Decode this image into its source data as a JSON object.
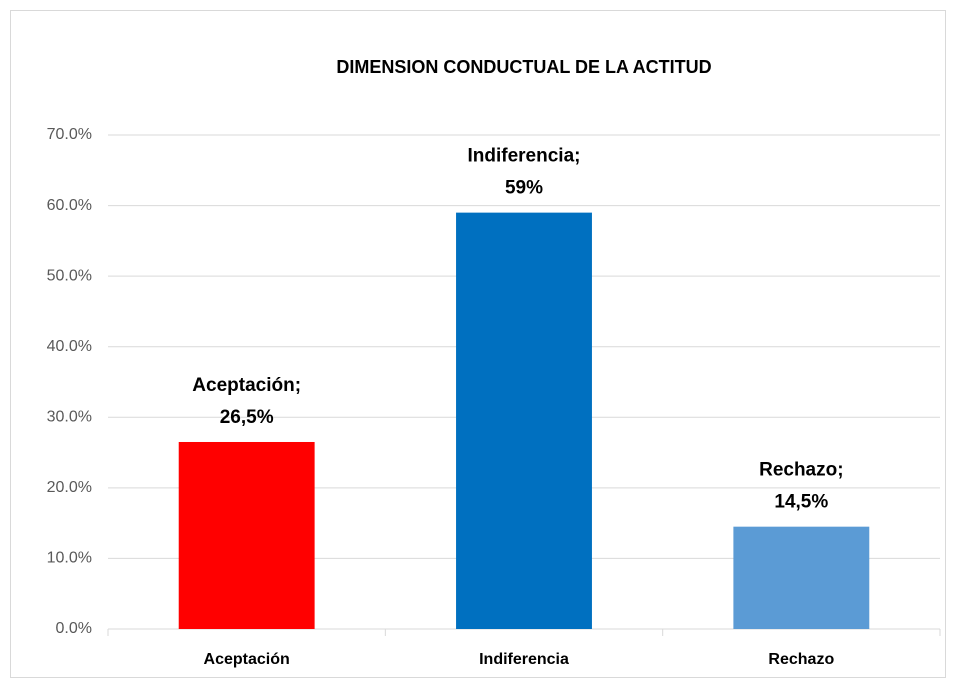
{
  "chart_data": {
    "type": "bar",
    "title": "DIMENSION CONDUCTUAL DE LA ACTITUD",
    "categories": [
      "Aceptación",
      "Indiferencia",
      "Rechazo"
    ],
    "values": [
      26.5,
      59,
      14.5
    ],
    "value_labels": [
      "Aceptación; 26,5%",
      "Indiferencia; 59%",
      "Rechazo; 14,5%"
    ],
    "colors": [
      "#ff0000",
      "#0070c0",
      "#5b9bd5"
    ],
    "ylim": [
      0,
      70
    ],
    "yticks": [
      {
        "value": 0,
        "label": "0.0%"
      },
      {
        "value": 10,
        "label": "10.0%"
      },
      {
        "value": 20,
        "label": "20.0%"
      },
      {
        "value": 30,
        "label": "30.0%"
      },
      {
        "value": 40,
        "label": "40.0%"
      },
      {
        "value": 50,
        "label": "50.0%"
      },
      {
        "value": 60,
        "label": "60.0%"
      },
      {
        "value": 70,
        "label": "70.0%"
      }
    ],
    "grid": true
  }
}
